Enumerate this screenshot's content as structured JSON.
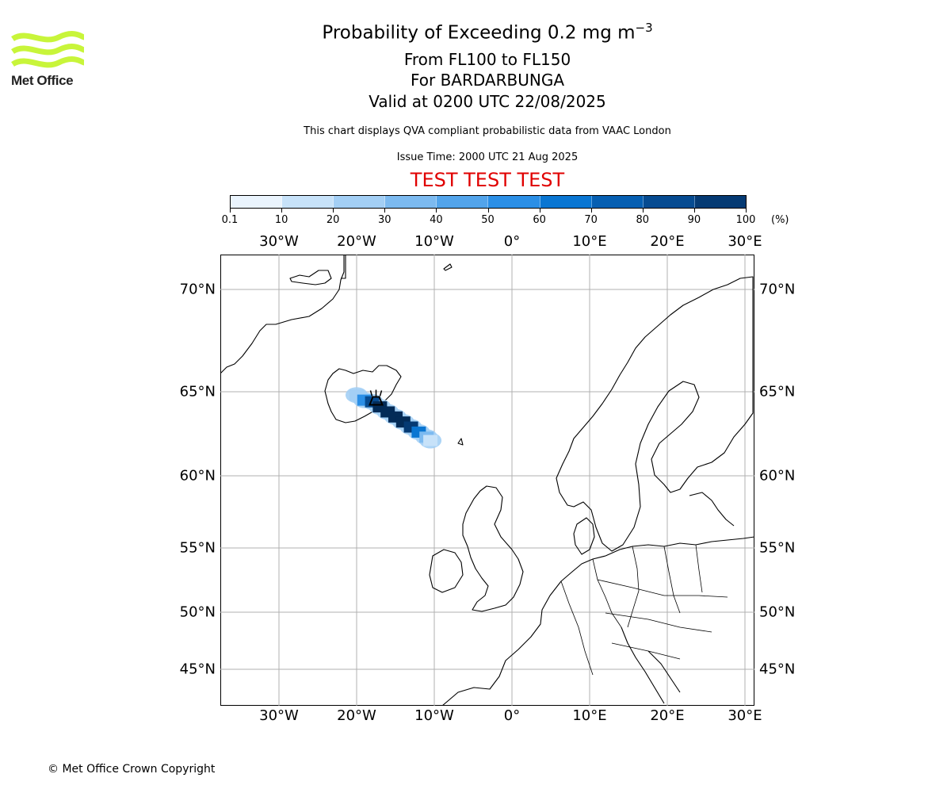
{
  "logo": {
    "text": "Met Office",
    "color": "#c8f53a"
  },
  "header": {
    "title": "Probability of Exceeding 0.2 mg m",
    "title_superscript": "−3",
    "subtitle_levels": "From FL100 to FL150",
    "subtitle_volcano": "For BARDARBUNGA",
    "subtitle_valid": "Valid at 0200 UTC 22/08/2025",
    "description": "This chart displays QVA compliant probabilistic data from VAAC London",
    "issue_time": "Issue Time: 2000 UTC 21 Aug 2025",
    "test_banner": "TEST TEST TEST",
    "test_color": "#e00000"
  },
  "colorbar": {
    "tick_labels": [
      "0.1",
      "10",
      "20",
      "30",
      "40",
      "50",
      "60",
      "70",
      "80",
      "90",
      "100"
    ],
    "unit": "(%)",
    "colors": [
      "#eaf4fd",
      "#c7e2f9",
      "#a3cff5",
      "#7cbaf0",
      "#52a4eb",
      "#2b8fe6",
      "#0a76d2",
      "#065fb2",
      "#064b91",
      "#053a73",
      "#032b57"
    ]
  },
  "map": {
    "lon_labels": [
      "30°W",
      "20°W",
      "10°W",
      "0°",
      "10°E",
      "20°E",
      "30°E"
    ],
    "lat_labels": [
      "70°N",
      "65°N",
      "60°N",
      "55°N",
      "50°N",
      "45°N"
    ],
    "volcano_marker": "volcano-icon"
  },
  "chart_data": {
    "type": "heatmap",
    "title": "Probability of Exceeding 0.2 mg m−3",
    "xlabel": "",
    "ylabel": "",
    "xlim": [
      -37.5,
      31.0
    ],
    "ylim": [
      43.0,
      72.5
    ],
    "colorbar_range": [
      0.1,
      100
    ],
    "colorbar_unit": "(%)",
    "source_location": {
      "name": "BARDARBUNGA",
      "lon": -17.5,
      "lat": 64.6
    },
    "plume_probability_points": [
      {
        "lon": -20.0,
        "lat": 64.8,
        "p": 15
      },
      {
        "lon": -19.0,
        "lat": 64.5,
        "p": 45
      },
      {
        "lon": -18.0,
        "lat": 64.4,
        "p": 75
      },
      {
        "lon": -17.0,
        "lat": 64.1,
        "p": 90
      },
      {
        "lon": -16.0,
        "lat": 63.8,
        "p": 95
      },
      {
        "lon": -15.0,
        "lat": 63.5,
        "p": 95
      },
      {
        "lon": -14.0,
        "lat": 63.2,
        "p": 90
      },
      {
        "lon": -13.0,
        "lat": 62.9,
        "p": 80
      },
      {
        "lon": -12.0,
        "lat": 62.6,
        "p": 55
      },
      {
        "lon": -11.0,
        "lat": 62.3,
        "p": 25
      },
      {
        "lon": -10.5,
        "lat": 62.1,
        "p": 8
      }
    ]
  },
  "footer": {
    "copyright": "© Met Office Crown Copyright"
  }
}
